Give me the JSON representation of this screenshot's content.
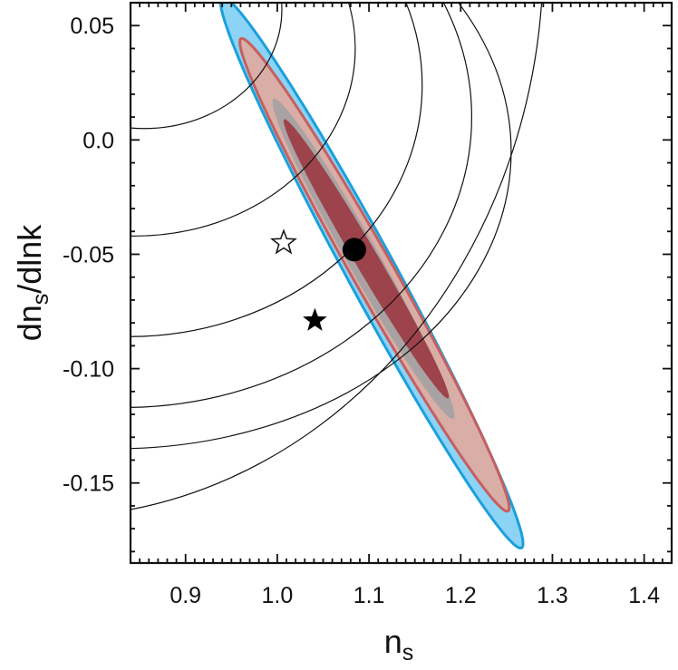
{
  "chart_data": {
    "type": "scatter",
    "xlabel": "n",
    "xlabel_sub": "s",
    "ylabel_pre": "dn",
    "ylabel_sub": "s",
    "ylabel_post": "/dlnk",
    "xlim": [
      0.84,
      1.43
    ],
    "ylim": [
      -0.185,
      0.06
    ],
    "x_ticks": [
      0.9,
      1.0,
      1.1,
      1.2,
      1.3,
      1.4
    ],
    "x_tick_labels": [
      "0.9",
      "1.0",
      "1.1",
      "1.2",
      "1.3",
      "1.4"
    ],
    "y_ticks": [
      0.05,
      0.0,
      -0.05,
      -0.1,
      -0.15
    ],
    "y_tick_labels": [
      "0.05",
      "0.0",
      "-0.05",
      "-0.10",
      "-0.15"
    ],
    "grid": false,
    "legend": "none",
    "contours": [
      {
        "level": "blue outer",
        "fill": "#8dd3f5",
        "stroke": "#1aa0dc",
        "center": [
          1.103,
          -0.058
        ],
        "semi_axes": [
          0.2035,
          0.0178
        ],
        "angle_deg": -36
      },
      {
        "level": "red outer",
        "fill": "#d9aea6",
        "stroke": "#c65f5f",
        "center": [
          1.106,
          -0.059
        ],
        "semi_axes": [
          0.179,
          0.0148
        ],
        "angle_deg": -35
      },
      {
        "level": "grey inner",
        "fill": "#a9a2a3",
        "stroke": "none",
        "center": [
          1.094,
          -0.052
        ],
        "semi_axes": [
          0.121,
          0.0115
        ],
        "angle_deg": -35
      },
      {
        "level": "red inner",
        "fill": "#9d434c",
        "stroke": "none",
        "center": [
          1.097,
          -0.052
        ],
        "semi_axes": [
          0.1085,
          0.0082
        ],
        "angle_deg": -34
      }
    ],
    "markers": [
      {
        "kind": "filled-circle",
        "x": 1.084,
        "y": -0.048
      },
      {
        "kind": "open-star",
        "x": 1.007,
        "y": -0.045
      },
      {
        "kind": "filled-star",
        "x": 1.041,
        "y": -0.079
      }
    ],
    "arcs": [
      {
        "cx": 0.855,
        "cy": 0.057,
        "rx": 0.15,
        "ry": 0.052
      },
      {
        "cx": 0.845,
        "cy": 0.04,
        "rx": 0.24,
        "ry": 0.082
      },
      {
        "cx": 0.838,
        "cy": 0.024,
        "rx": 0.32,
        "ry": 0.11
      },
      {
        "cx": 0.832,
        "cy": 0.01,
        "rx": 0.38,
        "ry": 0.127
      },
      {
        "cx": 0.825,
        "cy": -0.005,
        "rx": 0.43,
        "ry": 0.13
      },
      {
        "cx": 0.75,
        "cy": 0.08,
        "rx": 0.54,
        "ry": 0.245
      }
    ]
  }
}
